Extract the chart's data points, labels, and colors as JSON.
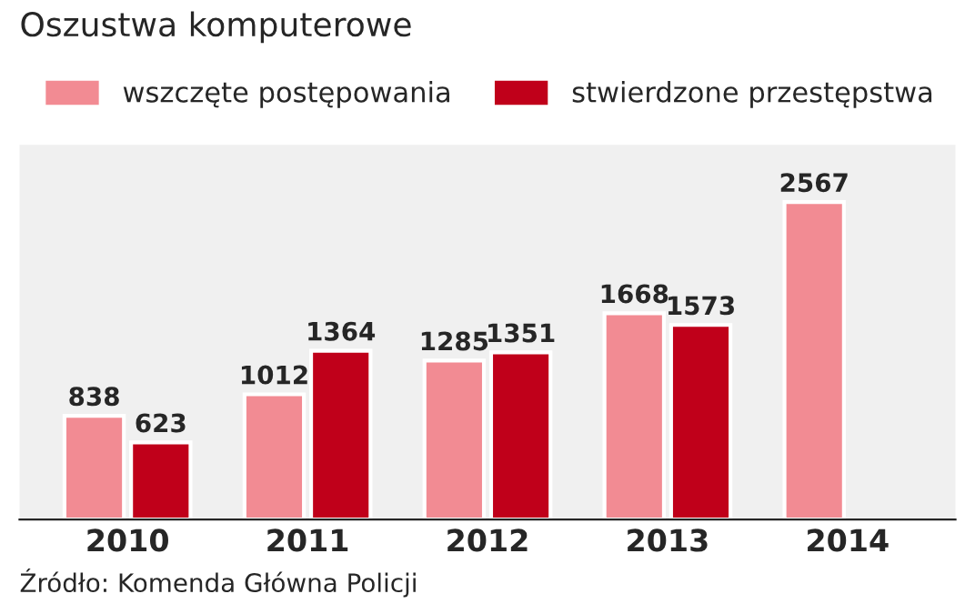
{
  "chart_data": {
    "type": "bar",
    "title": "Oszustwa komputerowe",
    "categories": [
      "2010",
      "2011",
      "2012",
      "2013",
      "2014"
    ],
    "series": [
      {
        "name": "wszczęte postępowania",
        "color": "#f28b93",
        "values": [
          838,
          1012,
          1285,
          1668,
          2567
        ]
      },
      {
        "name": "stwierdzone przestępstwa",
        "color": "#c0001a",
        "values": [
          623,
          1364,
          1351,
          1573,
          null
        ]
      }
    ],
    "data_labels": true,
    "legend": "top",
    "annotations": [
      "Źródło: Komenda Główna Policji"
    ]
  }
}
